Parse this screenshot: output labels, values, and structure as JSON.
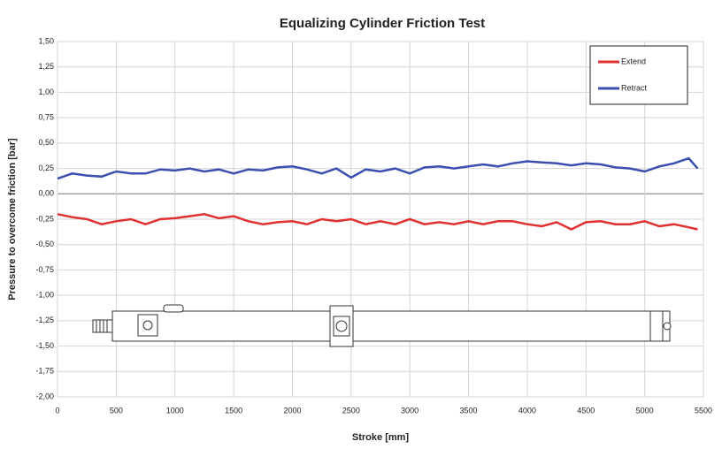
{
  "chart_data": {
    "type": "line",
    "title": "Equalizing Cylinder Friction Test",
    "x_label": "Stroke [mm]",
    "y_label": "Pressure to overcome friction [bar]",
    "x": [
      0,
      125,
      250,
      375,
      500,
      625,
      750,
      875,
      1000,
      1125,
      1250,
      1375,
      1500,
      1625,
      1750,
      1875,
      2000,
      2125,
      2250,
      2375,
      2500,
      2625,
      2750,
      2875,
      3000,
      3125,
      3250,
      3375,
      3500,
      3625,
      3750,
      3875,
      4000,
      4125,
      4250,
      4375,
      4500,
      4625,
      4750,
      4875,
      5000,
      5125,
      5250,
      5375,
      5450
    ],
    "series": [
      {
        "name": "Extend",
        "color": "#e03030",
        "values": [
          -0.2,
          -0.23,
          -0.25,
          -0.3,
          -0.27,
          -0.25,
          -0.3,
          -0.25,
          -0.24,
          -0.22,
          -0.2,
          -0.24,
          -0.22,
          -0.27,
          -0.3,
          -0.28,
          -0.27,
          -0.3,
          -0.25,
          -0.27,
          -0.25,
          -0.3,
          -0.27,
          -0.3,
          -0.25,
          -0.3,
          -0.28,
          -0.3,
          -0.27,
          -0.3,
          -0.27,
          -0.27,
          -0.3,
          -0.32,
          -0.28,
          -0.35,
          -0.28,
          -0.27,
          -0.3,
          -0.3,
          -0.27,
          -0.32,
          -0.3,
          -0.33,
          -0.35
        ]
      },
      {
        "name": "Retract",
        "color": "#3a4fb0",
        "values": [
          0.15,
          0.2,
          0.18,
          0.17,
          0.22,
          0.2,
          0.2,
          0.24,
          0.23,
          0.25,
          0.22,
          0.24,
          0.2,
          0.24,
          0.23,
          0.26,
          0.27,
          0.24,
          0.2,
          0.25,
          0.16,
          0.24,
          0.22,
          0.25,
          0.2,
          0.26,
          0.27,
          0.25,
          0.27,
          0.29,
          0.27,
          0.3,
          0.32,
          0.31,
          0.3,
          0.28,
          0.3,
          0.29,
          0.26,
          0.25,
          0.22,
          0.27,
          0.3,
          0.35,
          0.25
        ]
      }
    ],
    "xlim": [
      0,
      5500
    ],
    "xticks": [
      0,
      500,
      1000,
      1500,
      2000,
      2500,
      3000,
      3500,
      4000,
      4500,
      5000,
      5500
    ],
    "ylim": [
      -2,
      1.5
    ],
    "yticks": [
      {
        "value": -2,
        "label": "-2,00"
      },
      {
        "value": -1.75,
        "label": "-1,75"
      },
      {
        "value": -1.5,
        "label": "-1,50"
      },
      {
        "value": -1.25,
        "label": "-1,25"
      },
      {
        "value": -1,
        "label": "-1,00"
      },
      {
        "value": -0.75,
        "label": "-0,75"
      },
      {
        "value": -0.5,
        "label": "-0,50"
      },
      {
        "value": -0.25,
        "label": "-0,25"
      },
      {
        "value": 0,
        "label": "0,00"
      },
      {
        "value": 0.25,
        "label": "0,25"
      },
      {
        "value": 0.5,
        "label": "0,50"
      },
      {
        "value": 0.75,
        "label": "0,75"
      },
      {
        "value": 1,
        "label": "1,00"
      },
      {
        "value": 1.25,
        "label": "1,25"
      },
      {
        "value": 1.5,
        "label": "1,50"
      }
    ],
    "grid": true,
    "legend": "top-right"
  }
}
